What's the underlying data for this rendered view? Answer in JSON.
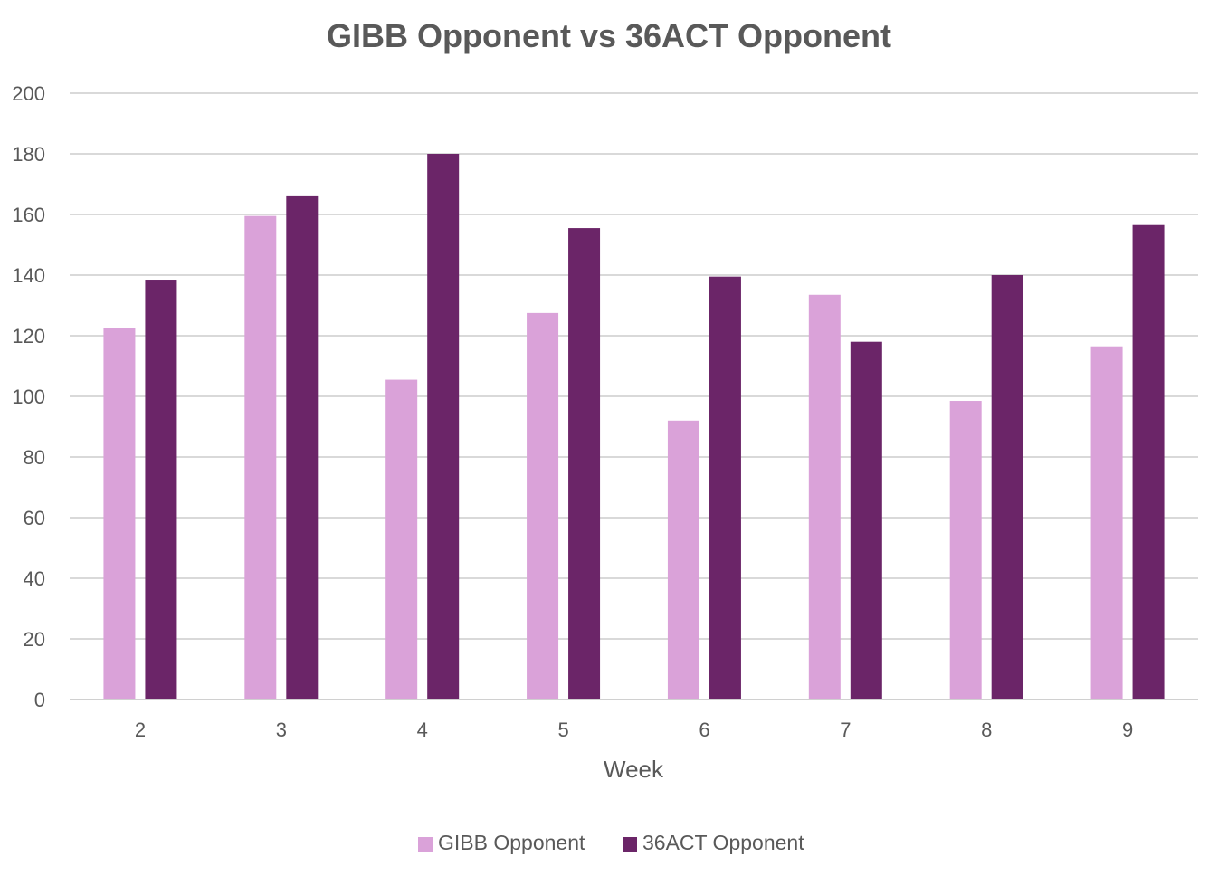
{
  "chart_data": {
    "type": "bar",
    "title": "GIBB Opponent vs 36ACT Opponent",
    "xlabel": "Week",
    "ylabel": "",
    "categories": [
      "2",
      "3",
      "4",
      "5",
      "6",
      "7",
      "8",
      "9"
    ],
    "series": [
      {
        "name": "GIBB Opponent",
        "color": "#daa2d9",
        "values": [
          122.5,
          159.5,
          105.5,
          127.5,
          92,
          133.5,
          98.5,
          116.5
        ]
      },
      {
        "name": "36ACT Opponent",
        "color": "#6b2568",
        "values": [
          138.5,
          166,
          180,
          155.5,
          139.5,
          118,
          140,
          156.5
        ]
      }
    ],
    "ylim": [
      0,
      200
    ],
    "yticks": [
      "0",
      "20",
      "40",
      "60",
      "80",
      "100",
      "120",
      "140",
      "160",
      "180",
      "200"
    ],
    "grid": true,
    "legend_position": "bottom"
  }
}
